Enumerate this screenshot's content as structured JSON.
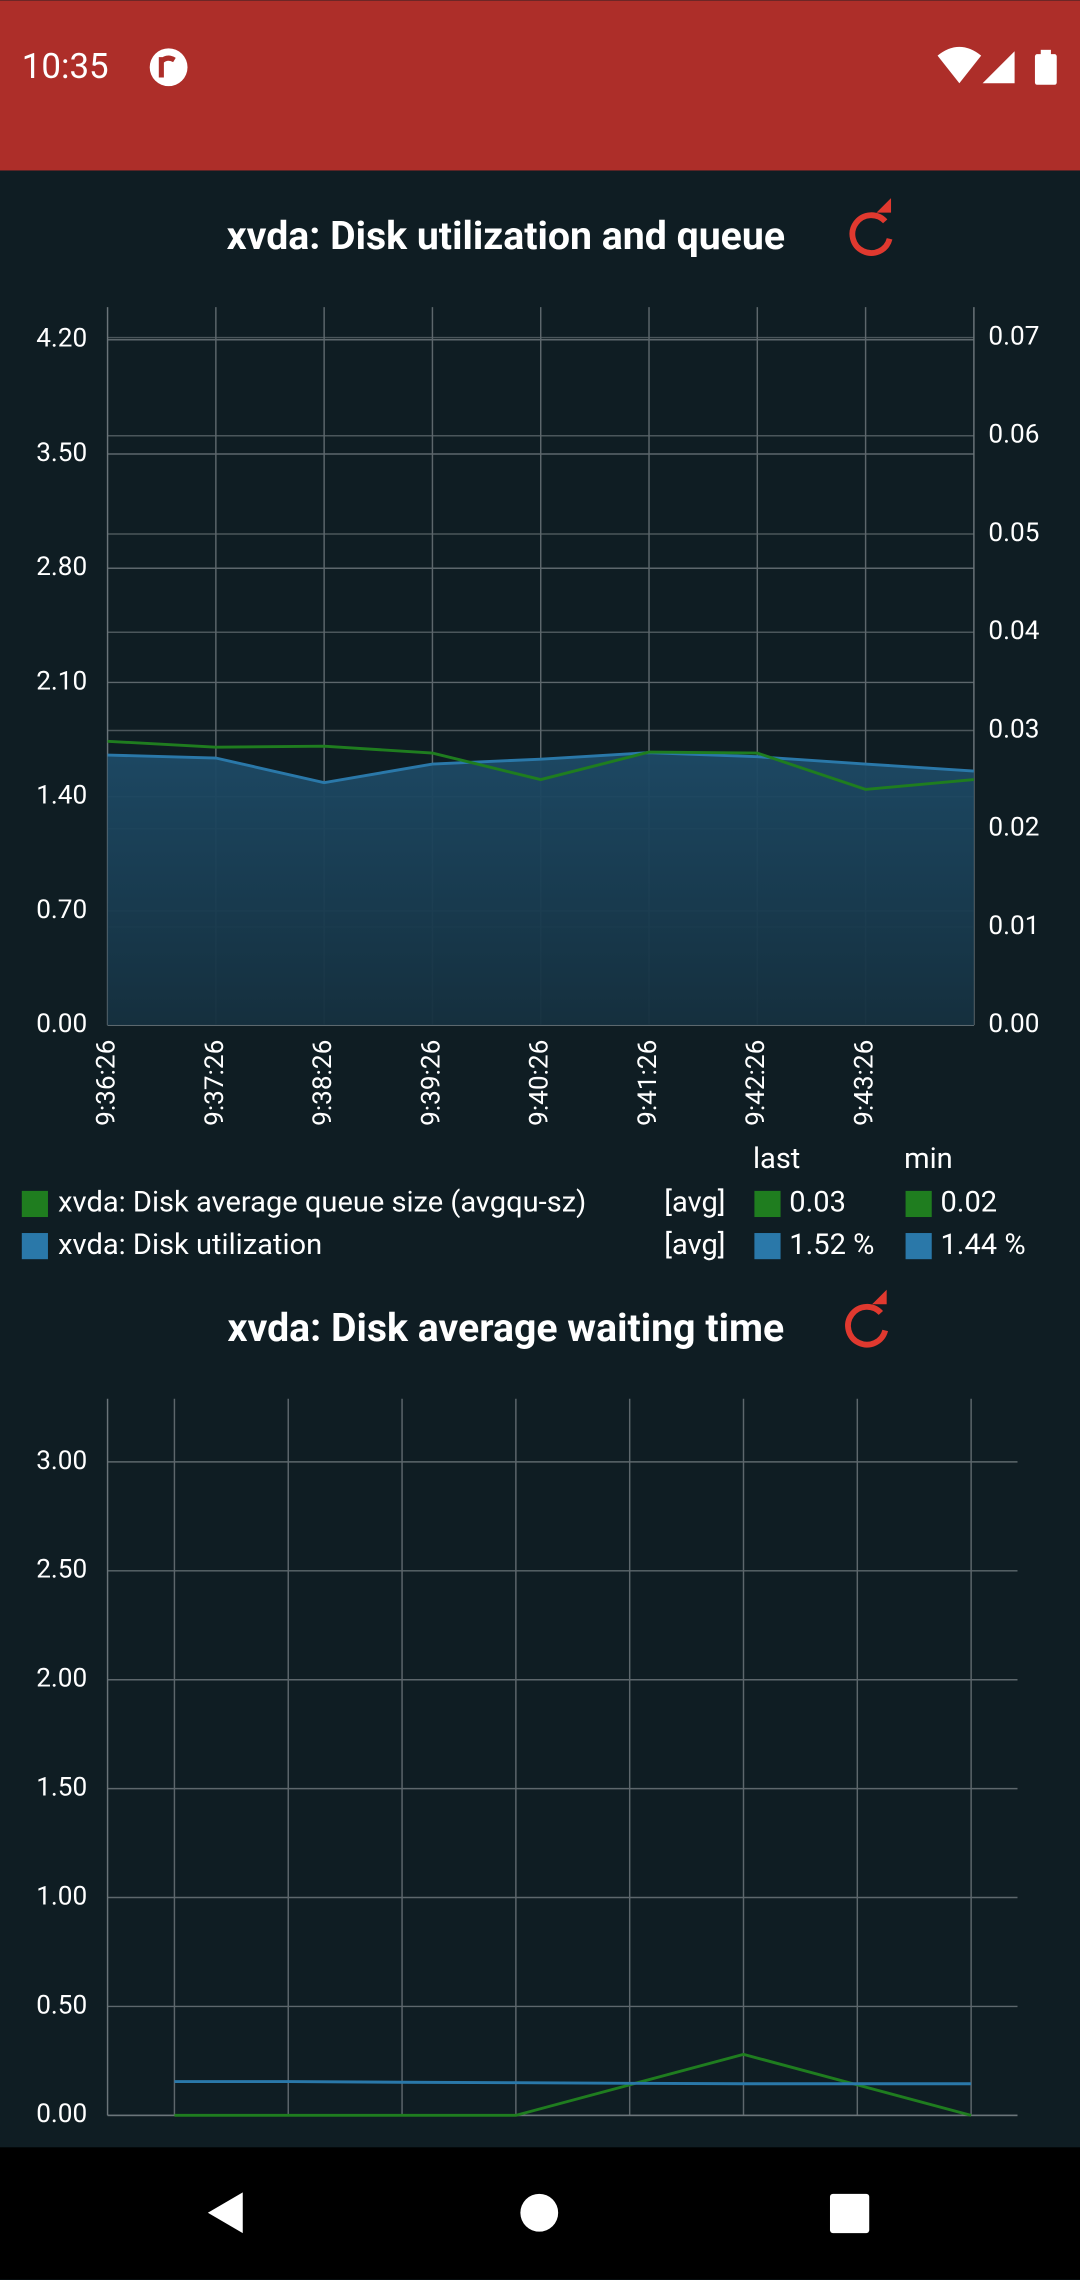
{
  "status_bar": {
    "time": "10:35"
  },
  "chart_data": [
    {
      "type": "line",
      "title": "xvda: Disk utilization and queue",
      "categories": [
        "9:36:26",
        "9:37:26",
        "9:38:26",
        "9:39:26",
        "9:40:26",
        "9:41:26",
        "9:42:26",
        "9:43:26",
        null
      ],
      "series": [
        {
          "name": "xvda: Disk average queue size (avgqu-sz)",
          "color": "#1f7d1f",
          "axis": "y2",
          "values": [
            0.0289,
            0.0283,
            0.0284,
            0.0277,
            0.025,
            0.0278,
            0.0277,
            0.024,
            0.025
          ],
          "aggregate": "[avg]",
          "last": "0.03",
          "min": "0.02"
        },
        {
          "name": "xvda: Disk utilization",
          "color": "#2a78a9",
          "fill": true,
          "values": [
            1.655,
            1.637,
            1.486,
            1.6,
            1.63,
            1.67,
            1.645,
            1.6,
            1.557
          ],
          "aggregate": "[avg]",
          "last": "1.52 %",
          "min": "1.44 %"
        }
      ],
      "legend_columns": [
        "last",
        "min"
      ],
      "ylim": [
        0,
        4.4
      ],
      "yticks": [
        {
          "value": 0,
          "label": "0.00"
        },
        {
          "value": 0.7,
          "label": "0.70"
        },
        {
          "value": 1.4,
          "label": "1.40"
        },
        {
          "value": 2.1,
          "label": "2.10"
        },
        {
          "value": 2.8,
          "label": "2.80"
        },
        {
          "value": 3.5,
          "label": "3.50"
        },
        {
          "value": 4.2,
          "label": "4.20"
        }
      ],
      "y2lim": [
        0,
        0.0731
      ],
      "y2ticks": [
        {
          "value": 0,
          "label": "0.00"
        },
        {
          "value": 0.01,
          "label": "0.01"
        },
        {
          "value": 0.02,
          "label": "0.02"
        },
        {
          "value": 0.03,
          "label": "0.03"
        },
        {
          "value": 0.04,
          "label": "0.04"
        },
        {
          "value": 0.05,
          "label": "0.05"
        },
        {
          "value": 0.06,
          "label": "0.06"
        },
        {
          "value": 0.07,
          "label": "0.07"
        }
      ],
      "grid": true
    },
    {
      "type": "line",
      "title": "xvda: Disk average waiting time",
      "categories": [
        null,
        null,
        null,
        null,
        null,
        null,
        null,
        null
      ],
      "series": [
        {
          "color": "#1f7d1f",
          "values": [
            0,
            0,
            0,
            0,
            0.14,
            0.28,
            0.14,
            0
          ]
        },
        {
          "color": "#2a78a9",
          "values": [
            0.155,
            0.155,
            0.152,
            0.15,
            0.147,
            0.145,
            0.145,
            0.145
          ]
        }
      ],
      "ylim": [
        0,
        3.29
      ],
      "yticks": [
        {
          "value": 0,
          "label": "0.00"
        },
        {
          "value": 0.5,
          "label": "0.50"
        },
        {
          "value": 1,
          "label": "1.00"
        },
        {
          "value": 1.5,
          "label": "1.50"
        },
        {
          "value": 2,
          "label": "2.00"
        },
        {
          "value": 2.5,
          "label": "2.50"
        },
        {
          "value": 3,
          "label": "3.00"
        }
      ],
      "grid": true
    }
  ]
}
